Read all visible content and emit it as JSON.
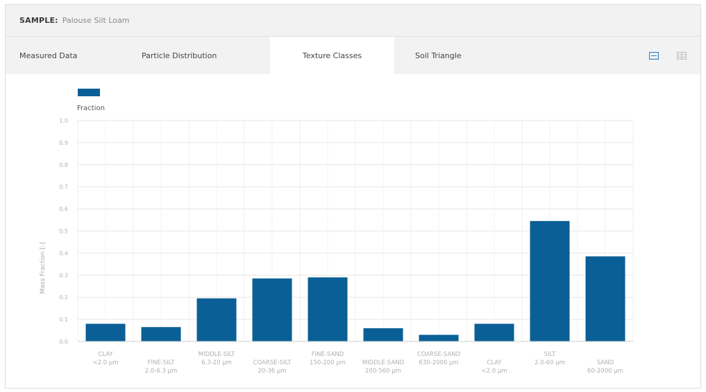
{
  "header": {
    "sample_label": "SAMPLE:",
    "sample_name": "Palouse Silt Loam"
  },
  "tabs": [
    {
      "label": "Measured Data",
      "active": false
    },
    {
      "label": "Particle Distribution",
      "active": false
    },
    {
      "label": "Texture Classes",
      "active": true
    },
    {
      "label": "Soil Triangle",
      "active": false
    }
  ],
  "view_toggle": {
    "icons": [
      "chart-view-icon",
      "table-view-icon"
    ],
    "active": "chart-view-icon"
  },
  "colors": {
    "bar": "#0a5f96",
    "active_toggle": "#2f7fc4",
    "grid": "#e6e6e6",
    "tick": "#b0b0b0"
  },
  "chart_data": {
    "type": "bar",
    "legend": {
      "entries": [
        "Fraction"
      ],
      "placement": "top-left"
    },
    "ylabel": "Mass Fraction [-]",
    "xlabel": "",
    "ylim": [
      0,
      1.0
    ],
    "yticks": [
      "0.0",
      "0.1",
      "0.2",
      "0.3",
      "0.4",
      "0.5",
      "0.6",
      "0.7",
      "0.8",
      "0.9",
      "1.0"
    ],
    "grid": true,
    "categories": [
      {
        "name": "CLAY",
        "range": "<2.0 µm"
      },
      {
        "name": "FINE-SILT",
        "range": "2.0-6.3 µm"
      },
      {
        "name": "MIDDLE-SILT",
        "range": "6.3-20 µm"
      },
      {
        "name": "COARSE-SILT",
        "range": "20-36 µm"
      },
      {
        "name": "FINE-SAND",
        "range": "150-200 µm"
      },
      {
        "name": "MIDDLE-SAND",
        "range": "200-560 µm"
      },
      {
        "name": "COARSE-SAND",
        "range": "630-2000 µm"
      },
      {
        "name": "CLAY",
        "range": "<2.0 µm"
      },
      {
        "name": "SILT",
        "range": "2.0-60 µm"
      },
      {
        "name": "SAND",
        "range": "60-2000 µm"
      }
    ],
    "series": [
      {
        "values": [
          0.08,
          0.065,
          0.195,
          0.285,
          0.29,
          0.06,
          0.03,
          0.08,
          0.545,
          0.385
        ]
      }
    ]
  }
}
